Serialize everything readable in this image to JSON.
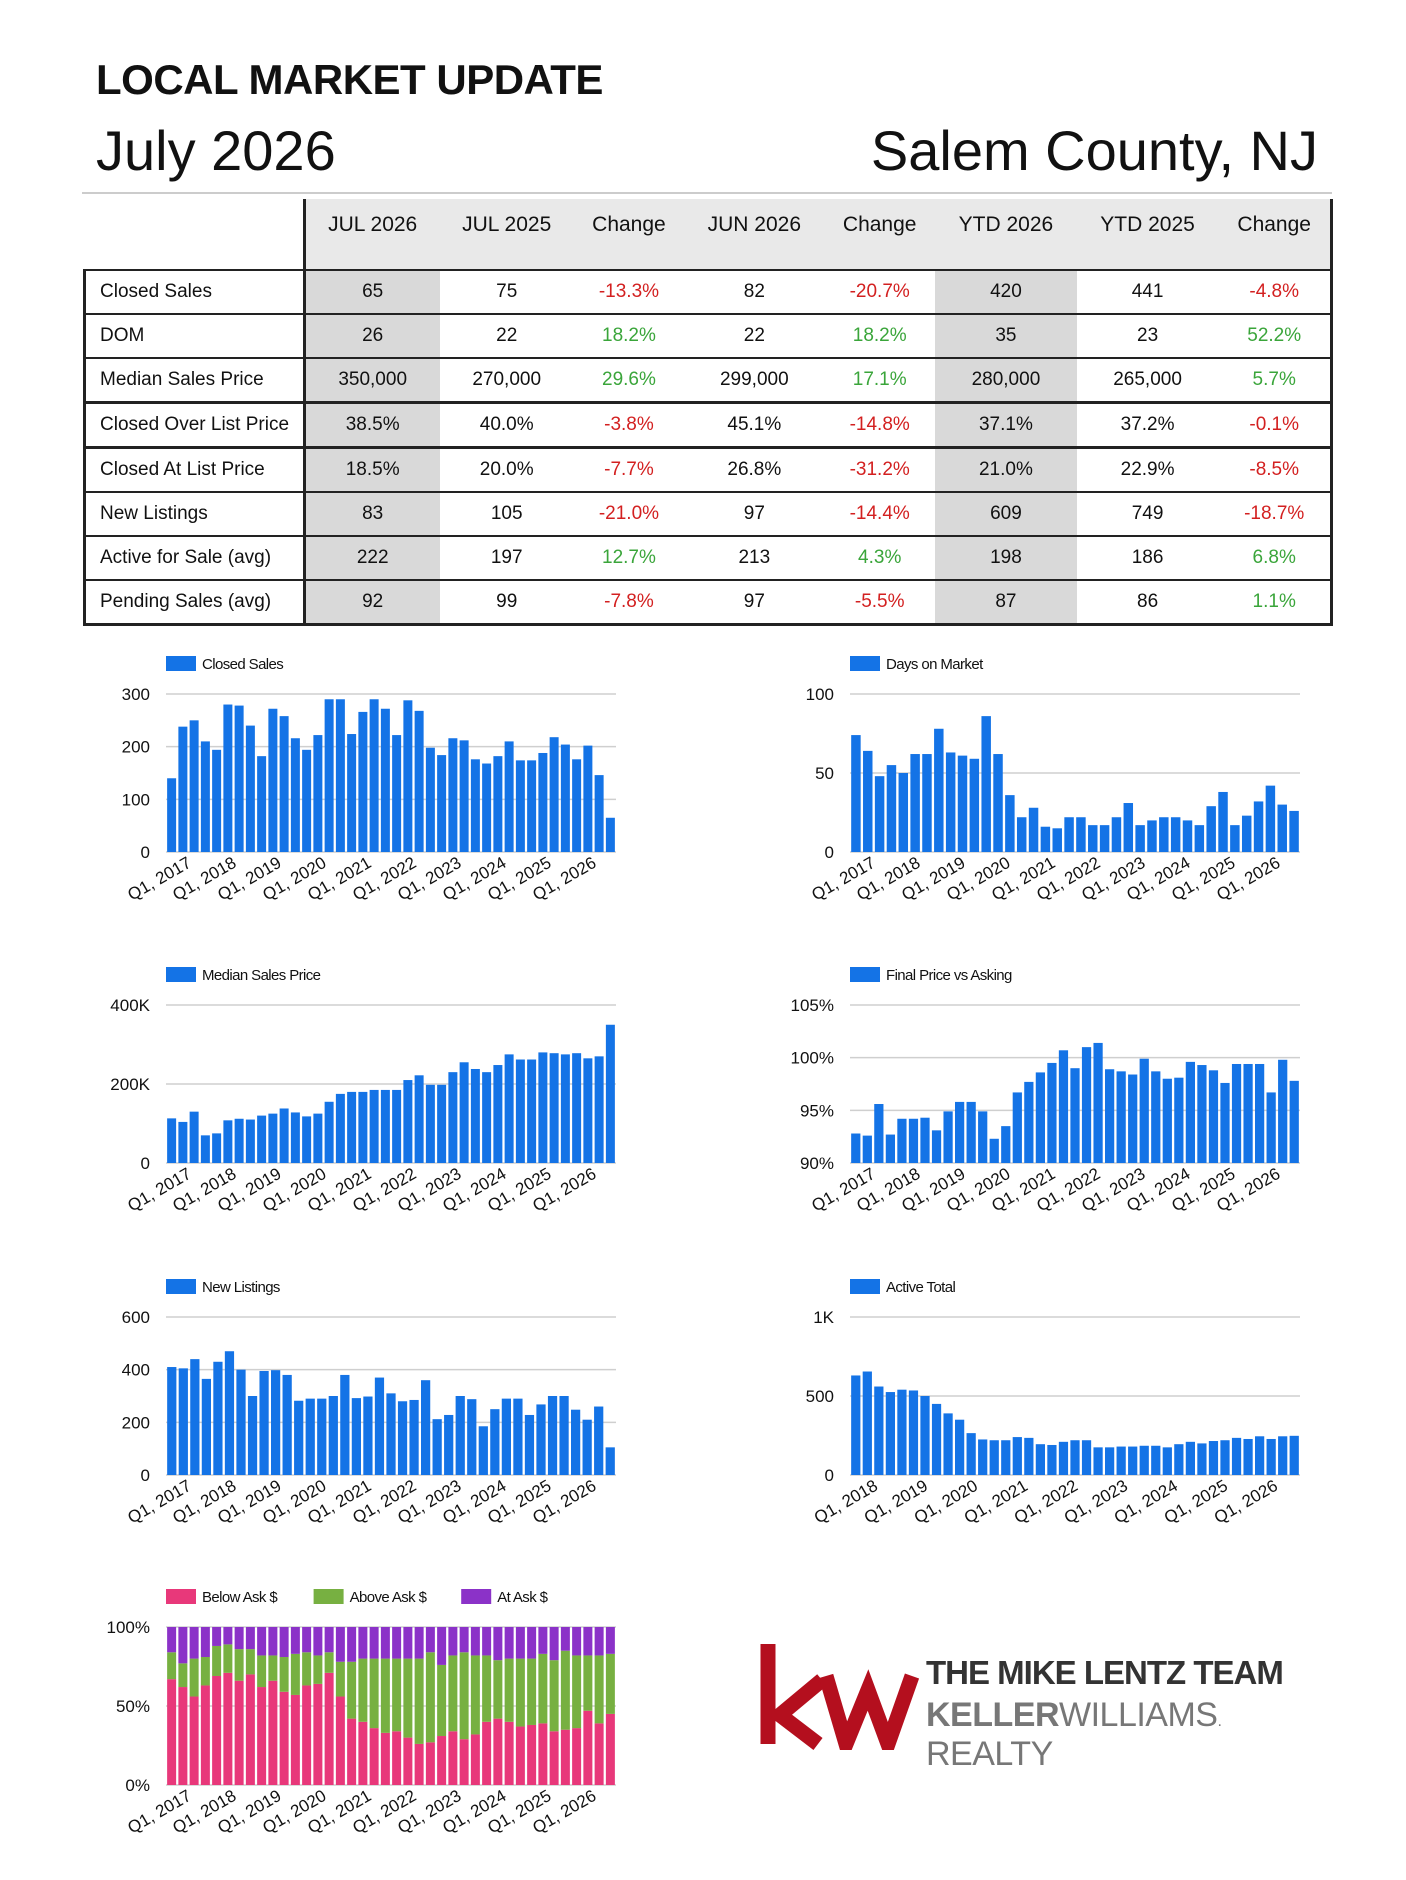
{
  "header": {
    "title": "LOCAL MARKET UPDATE",
    "month": "July 2026",
    "county": "Salem County, NJ"
  },
  "table": {
    "columns": [
      "JUL 2026",
      "JUL 2025",
      "Change",
      "JUN 2026",
      "Change",
      "YTD 2026",
      "YTD 2025",
      "Change"
    ],
    "rows": [
      {
        "label": "Closed Sales",
        "cells": [
          "65",
          "75",
          "-13.3%",
          "82",
          "-20.7%",
          "420",
          "441",
          "-4.8%"
        ],
        "change_sign": [
          "neg",
          "neg",
          "neg"
        ]
      },
      {
        "label": "DOM",
        "cells": [
          "26",
          "22",
          "18.2%",
          "22",
          "18.2%",
          "35",
          "23",
          "52.2%"
        ],
        "change_sign": [
          "pos",
          "pos",
          "pos"
        ]
      },
      {
        "label": "Median Sales Price",
        "cells": [
          "350,000",
          "270,000",
          "29.6%",
          "299,000",
          "17.1%",
          "280,000",
          "265,000",
          "5.7%"
        ],
        "change_sign": [
          "pos",
          "pos",
          "pos"
        ]
      },
      {
        "label": "Closed Over List Price",
        "cells": [
          "38.5%",
          "40.0%",
          "-3.8%",
          "45.1%",
          "-14.8%",
          "37.1%",
          "37.2%",
          "-0.1%"
        ],
        "change_sign": [
          "neg",
          "neg",
          "neg"
        ]
      },
      {
        "label": "Closed At List Price",
        "cells": [
          "18.5%",
          "20.0%",
          "-7.7%",
          "26.8%",
          "-31.2%",
          "21.0%",
          "22.9%",
          "-8.5%"
        ],
        "change_sign": [
          "neg",
          "neg",
          "neg"
        ]
      },
      {
        "label": "New Listings",
        "cells": [
          "83",
          "105",
          "-21.0%",
          "97",
          "-14.4%",
          "609",
          "749",
          "-18.7%"
        ],
        "change_sign": [
          "neg",
          "neg",
          "neg"
        ]
      },
      {
        "label": "Active for Sale (avg)",
        "cells": [
          "222",
          "197",
          "12.7%",
          "213",
          "4.3%",
          "198",
          "186",
          "6.8%"
        ],
        "change_sign": [
          "pos",
          "pos",
          "pos"
        ]
      },
      {
        "label": "Pending Sales (avg)",
        "cells": [
          "92",
          "99",
          "-7.8%",
          "97",
          "-5.5%",
          "87",
          "86",
          "1.1%"
        ],
        "change_sign": [
          "neg",
          "neg",
          "pos"
        ]
      }
    ]
  },
  "colors": {
    "bar_blue": "#1473e6",
    "neg_red": "#d32020",
    "pos_green": "#3aa53a",
    "below_ask": "#e8387a",
    "above_ask": "#77b041",
    "at_ask": "#8b32c8",
    "kw_red": "#b40f1e"
  },
  "chart_data": [
    {
      "type": "bar",
      "id": "closed-sales",
      "series": [
        {
          "name": "Closed Sales",
          "values": [
            140,
            238,
            250,
            210,
            194,
            280,
            278,
            240,
            182,
            272,
            258,
            216,
            194,
            222,
            290,
            290,
            224,
            266,
            290,
            272,
            222,
            288,
            268,
            198,
            184,
            216,
            212,
            176,
            168,
            182,
            210,
            174,
            174,
            188,
            218,
            204,
            176,
            202,
            146,
            65
          ]
        }
      ],
      "ylim": [
        0,
        300
      ],
      "yticks": [
        "0",
        "100",
        "200",
        "300"
      ],
      "xticks": [
        "Q1, 2017",
        "Q1, 2018",
        "Q1, 2019",
        "Q1, 2020",
        "Q1, 2021",
        "Q1, 2022",
        "Q1, 2023",
        "Q1, 2024",
        "Q1, 2025",
        "Q1, 2026"
      ]
    },
    {
      "type": "bar",
      "id": "days-on-market",
      "series": [
        {
          "name": "Days on Market",
          "values": [
            74,
            64,
            48,
            55,
            50,
            62,
            62,
            78,
            63,
            61,
            59,
            86,
            62,
            36,
            22,
            28,
            16,
            15,
            22,
            22,
            17,
            17,
            22,
            31,
            17,
            20,
            22,
            22,
            20,
            17,
            29,
            38,
            17,
            23,
            32,
            42,
            30,
            26
          ]
        }
      ],
      "ylim": [
        0,
        100
      ],
      "yticks": [
        "0",
        "50",
        "100"
      ],
      "xticks": [
        "Q1, 2017",
        "Q1, 2018",
        "Q1, 2019",
        "Q1, 2020",
        "Q1, 2021",
        "Q1, 2022",
        "Q1, 2023",
        "Q1, 2024",
        "Q1, 2025",
        "Q1, 2026"
      ]
    },
    {
      "type": "bar",
      "id": "median-sales-price",
      "series": [
        {
          "name": "Median Sales Price",
          "values": [
            113000,
            104000,
            130000,
            70000,
            75000,
            108000,
            112000,
            110000,
            120000,
            125000,
            138000,
            128000,
            118000,
            125000,
            155000,
            175000,
            180000,
            180000,
            185000,
            185000,
            185000,
            210000,
            222000,
            198000,
            198000,
            230000,
            255000,
            238000,
            230000,
            248000,
            275000,
            262000,
            262000,
            280000,
            278000,
            275000,
            278000,
            265000,
            270000,
            350000
          ]
        }
      ],
      "ylim": [
        0,
        400000
      ],
      "yticks": [
        "0",
        "200K",
        "400K"
      ],
      "xticks": [
        "Q1, 2017",
        "Q1, 2018",
        "Q1, 2019",
        "Q1, 2020",
        "Q1, 2021",
        "Q1, 2022",
        "Q1, 2023",
        "Q1, 2024",
        "Q1, 2025",
        "Q1, 2026"
      ]
    },
    {
      "type": "bar",
      "id": "final-price-vs-asking",
      "series": [
        {
          "name": "Final Price vs Asking",
          "values": [
            92.8,
            92.6,
            95.6,
            92.7,
            94.2,
            94.2,
            94.3,
            93.1,
            94.9,
            95.8,
            95.8,
            94.9,
            92.3,
            93.5,
            96.7,
            97.7,
            98.6,
            99.5,
            100.7,
            99.0,
            101.0,
            101.4,
            98.9,
            98.7,
            98.4,
            99.9,
            98.7,
            98.0,
            98.1,
            99.6,
            99.3,
            98.8,
            97.6,
            99.4,
            99.4,
            99.4,
            96.7,
            99.8,
            97.8
          ]
        }
      ],
      "ylim": [
        90,
        105
      ],
      "yticks": [
        "90%",
        "95%",
        "100%",
        "105%"
      ],
      "xticks": [
        "Q1, 2017",
        "Q1, 2018",
        "Q1, 2019",
        "Q1, 2020",
        "Q1, 2021",
        "Q1, 2022",
        "Q1, 2023",
        "Q1, 2024",
        "Q1, 2025",
        "Q1, 2026"
      ]
    },
    {
      "type": "bar",
      "id": "new-listings",
      "series": [
        {
          "name": "New Listings",
          "values": [
            410,
            405,
            440,
            365,
            430,
            470,
            400,
            300,
            395,
            398,
            380,
            282,
            290,
            290,
            300,
            380,
            292,
            298,
            370,
            310,
            280,
            285,
            360,
            212,
            228,
            300,
            288,
            185,
            250,
            290,
            290,
            228,
            268,
            300,
            300,
            248,
            210,
            260,
            105
          ]
        }
      ],
      "ylim": [
        0,
        600
      ],
      "yticks": [
        "0",
        "200",
        "400",
        "600"
      ],
      "xticks": [
        "Q1, 2017",
        "Q1, 2018",
        "Q1, 2019",
        "Q1, 2020",
        "Q1, 2021",
        "Q1, 2022",
        "Q1, 2023",
        "Q1, 2024",
        "Q1, 2025",
        "Q1, 2026"
      ]
    },
    {
      "type": "bar",
      "id": "active-total",
      "series": [
        {
          "name": "Active Total",
          "values": [
            630,
            655,
            560,
            525,
            540,
            535,
            500,
            450,
            390,
            350,
            265,
            225,
            220,
            220,
            240,
            235,
            195,
            190,
            210,
            220,
            220,
            175,
            175,
            180,
            180,
            185,
            185,
            175,
            195,
            210,
            200,
            215,
            220,
            235,
            228,
            245,
            228,
            245,
            248
          ]
        }
      ],
      "ylim": [
        0,
        1000
      ],
      "yticks": [
        "0",
        "500",
        "1K"
      ],
      "xticks": [
        "Q1, 2018",
        "Q1, 2019",
        "Q1, 2020",
        "Q1, 2021",
        "Q1, 2022",
        "Q1, 2023",
        "Q1, 2024",
        "Q1, 2025",
        "Q1, 2026"
      ]
    },
    {
      "type": "bar",
      "stacked": true,
      "id": "ask-breakdown",
      "series": [
        {
          "name": "Below Ask $",
          "values": [
            67,
            62,
            56,
            63,
            69,
            71,
            66,
            70,
            62,
            66,
            59,
            57,
            63,
            64,
            71,
            56,
            42,
            40,
            36,
            33,
            34,
            30,
            26,
            27,
            31,
            34,
            29,
            32,
            40,
            42,
            40,
            37,
            38,
            39,
            34,
            35,
            36,
            47,
            39,
            45
          ]
        },
        {
          "name": "Above Ask $",
          "values": [
            17,
            15,
            24,
            18,
            19,
            18,
            20,
            16,
            20,
            16,
            22,
            26,
            21,
            18,
            13,
            22,
            36,
            40,
            44,
            47,
            46,
            50,
            54,
            57,
            45,
            48,
            55,
            50,
            42,
            37,
            40,
            43,
            42,
            44,
            45,
            50,
            46,
            35,
            43,
            38
          ]
        },
        {
          "name": "At Ask $",
          "values": [
            16,
            23,
            20,
            19,
            12,
            11,
            14,
            14,
            18,
            18,
            19,
            17,
            16,
            18,
            16,
            22,
            22,
            20,
            20,
            20,
            20,
            20,
            20,
            16,
            24,
            18,
            16,
            18,
            18,
            21,
            20,
            20,
            20,
            17,
            21,
            15,
            18,
            18,
            18,
            17
          ]
        }
      ],
      "ylim": [
        0,
        100
      ],
      "yticks": [
        "0%",
        "50%",
        "100%"
      ],
      "xticks": [
        "Q1, 2017",
        "Q1, 2018",
        "Q1, 2019",
        "Q1, 2020",
        "Q1, 2021",
        "Q1, 2022",
        "Q1, 2023",
        "Q1, 2024",
        "Q1, 2025",
        "Q1, 2026"
      ]
    }
  ],
  "logo": {
    "mark": "kw",
    "team": "THE MIKE LENTZ TEAM",
    "brand_bold": "KELLER",
    "brand_rest": "WILLIAMS",
    "brand_tail": "REALTY"
  }
}
